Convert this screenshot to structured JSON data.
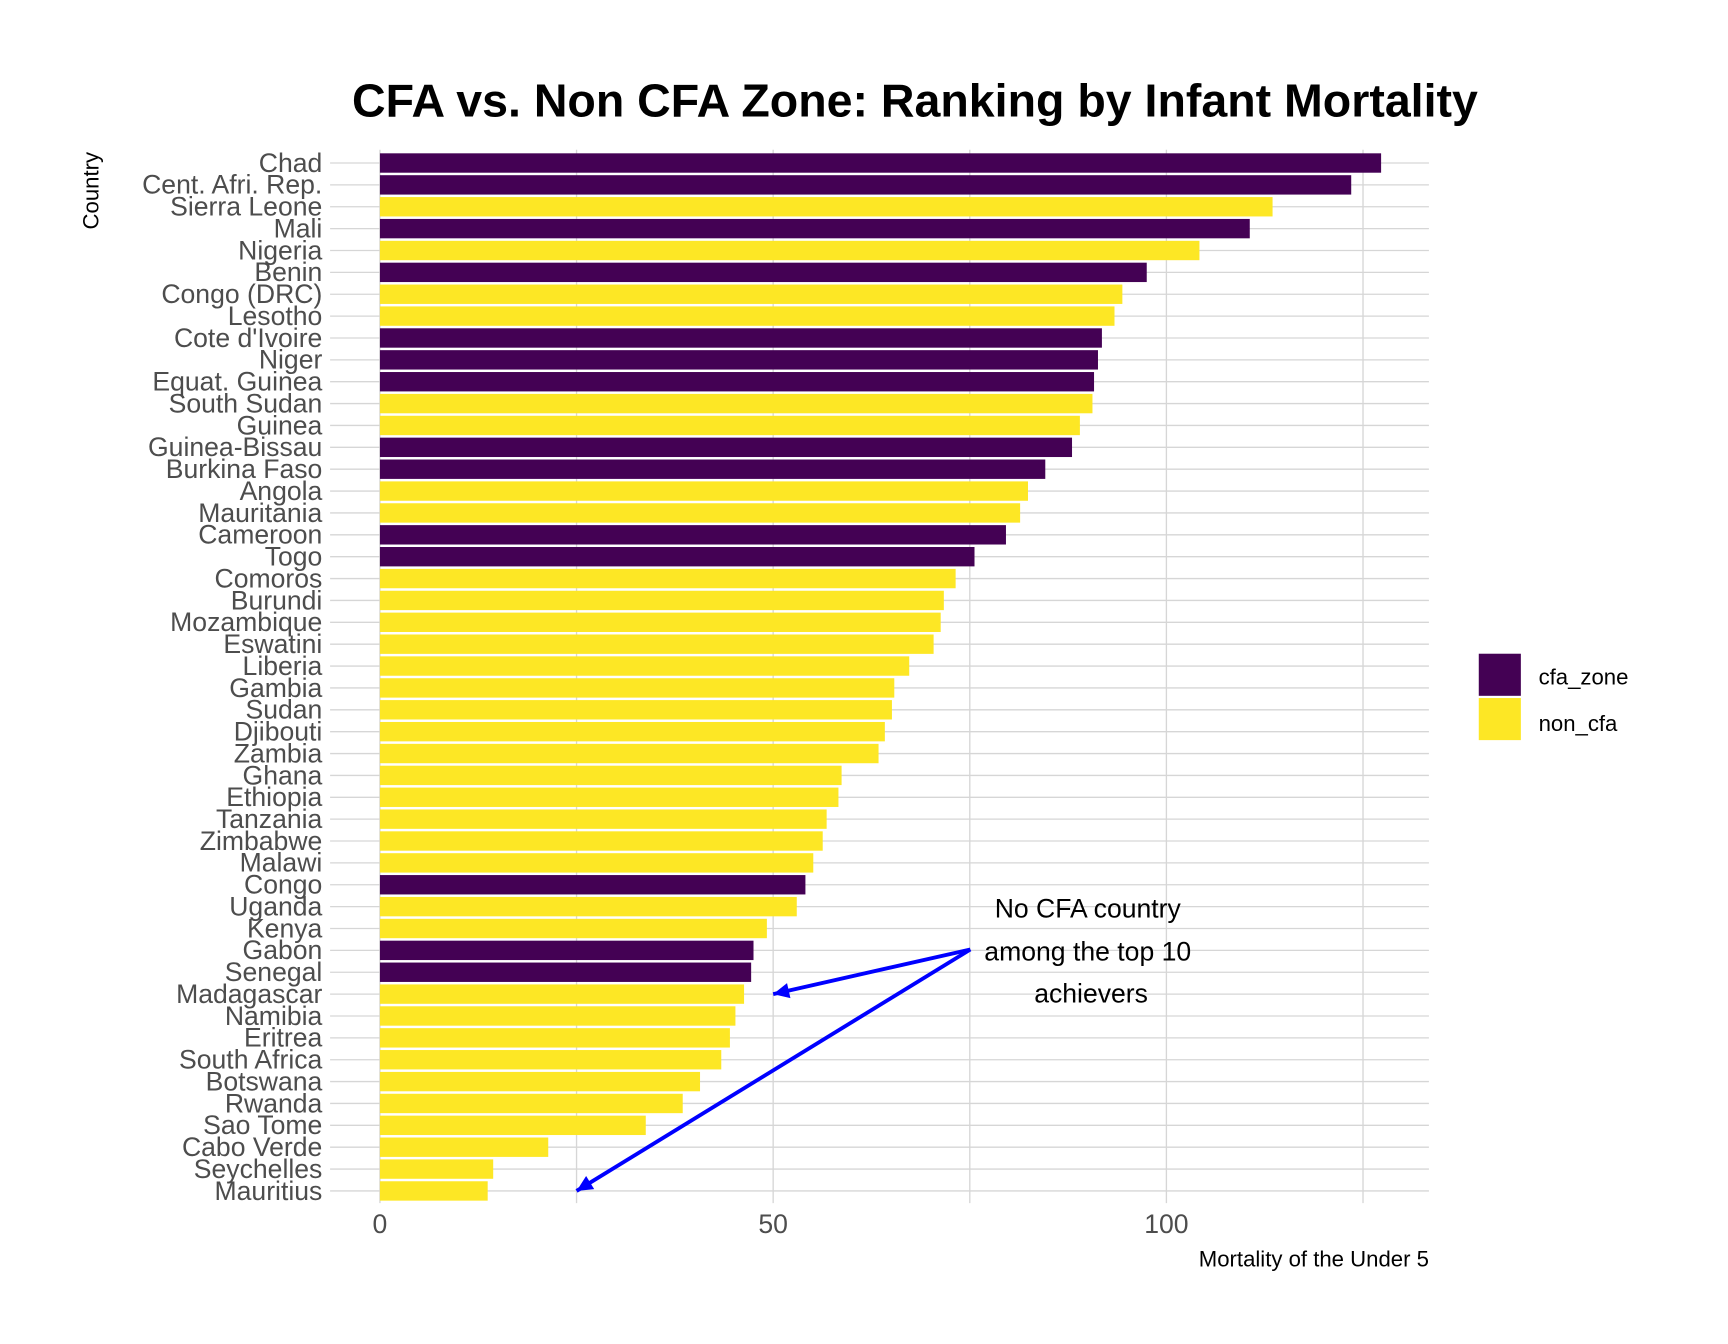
{
  "chart_data": {
    "type": "bar",
    "orientation": "horizontal",
    "title": "CFA vs. Non CFA Zone: Ranking by Infant Mortality",
    "xlabel": "Mortality of the Under 5",
    "ylabel": "Country",
    "xlim": [
      0,
      134
    ],
    "xticks": [
      0,
      50,
      100
    ],
    "grid": true,
    "legend": {
      "position": "right",
      "entries": [
        {
          "key": "cfa_zone",
          "label": "cfa_zone",
          "color": "#440154"
        },
        {
          "key": "non_cfa",
          "label": "non_cfa",
          "color": "#FDE725"
        }
      ]
    },
    "categories": [
      "Chad",
      "Cent. Afri. Rep.",
      "Sierra Leone",
      "Mali",
      "Nigeria",
      "Benin",
      "Congo (DRC)",
      "Lesotho",
      "Cote d'Ivoire",
      "Niger",
      "Equat. Guinea",
      "South Sudan",
      "Guinea",
      "Guinea-Bissau",
      "Burkina Faso",
      "Angola",
      "Mauritania",
      "Cameroon",
      "Togo",
      "Comoros",
      "Burundi",
      "Mozambique",
      "Eswatini",
      "Liberia",
      "Gambia",
      "Sudan",
      "Djibouti",
      "Zambia",
      "Ghana",
      "Ethiopia",
      "Tanzania",
      "Zimbabwe",
      "Malawi",
      "Congo",
      "Uganda",
      "Kenya",
      "Gabon",
      "Senegal",
      "Madagascar",
      "Namibia",
      "Eritrea",
      "South Africa",
      "Botswana",
      "Rwanda",
      "Sao Tome",
      "Cabo Verde",
      "Seychelles",
      "Mauritius"
    ],
    "values": [
      127.3,
      123.5,
      113.5,
      110.6,
      104.2,
      97.5,
      94.4,
      93.4,
      91.8,
      91.3,
      90.8,
      90.6,
      89.0,
      88.0,
      84.6,
      82.4,
      81.4,
      79.6,
      75.6,
      73.2,
      71.7,
      71.3,
      70.4,
      67.3,
      65.4,
      65.1,
      64.2,
      63.4,
      58.7,
      58.3,
      56.8,
      56.3,
      55.1,
      54.1,
      53.0,
      49.2,
      47.5,
      47.2,
      46.3,
      45.2,
      44.5,
      43.4,
      40.7,
      38.5,
      33.8,
      21.4,
      14.4,
      13.7
    ],
    "groups": [
      "cfa_zone",
      "cfa_zone",
      "non_cfa",
      "cfa_zone",
      "non_cfa",
      "cfa_zone",
      "non_cfa",
      "non_cfa",
      "cfa_zone",
      "cfa_zone",
      "cfa_zone",
      "non_cfa",
      "non_cfa",
      "cfa_zone",
      "cfa_zone",
      "non_cfa",
      "non_cfa",
      "cfa_zone",
      "cfa_zone",
      "non_cfa",
      "non_cfa",
      "non_cfa",
      "non_cfa",
      "non_cfa",
      "non_cfa",
      "non_cfa",
      "non_cfa",
      "non_cfa",
      "non_cfa",
      "non_cfa",
      "non_cfa",
      "non_cfa",
      "non_cfa",
      "cfa_zone",
      "non_cfa",
      "non_cfa",
      "cfa_zone",
      "cfa_zone",
      "non_cfa",
      "non_cfa",
      "non_cfa",
      "non_cfa",
      "non_cfa",
      "non_cfa",
      "non_cfa",
      "non_cfa",
      "non_cfa",
      "non_cfa"
    ],
    "annotation": {
      "lines": [
        "No CFA country",
        "among the top 10",
        "achievers"
      ],
      "arrow_color": "#0000FF",
      "arrow_targets": [
        {
          "x": 50,
          "category": "Madagascar"
        },
        {
          "x": 25,
          "category": "Mauritius"
        }
      ]
    }
  }
}
